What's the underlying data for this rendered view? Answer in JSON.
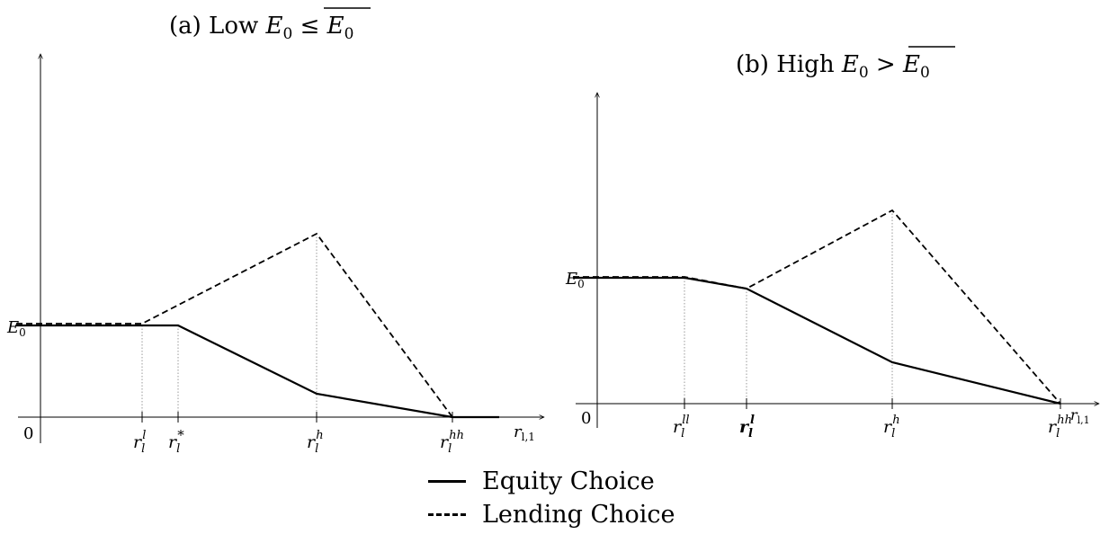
{
  "panel_a": {
    "title_prefix": "(a) Low ",
    "title_math": "E₀ ≤ E₀",
    "title_var": "E",
    "title_sub": "0",
    "title_rel": " ≤ ",
    "origin": "0",
    "y_label": "E₀",
    "ticks": [
      {
        "base": "r",
        "sub": "l",
        "sup": "l"
      },
      {
        "base": "r",
        "sub": "l",
        "sup": "*"
      },
      {
        "base": "r",
        "sub": "l",
        "sup": "h"
      },
      {
        "base": "r",
        "sub": "l",
        "sup": "hh"
      }
    ],
    "x_axis_label": {
      "base": "r",
      "sub": "l,1"
    }
  },
  "panel_b": {
    "title_prefix": "(b) High ",
    "title_var": "E",
    "title_sub": "0",
    "title_rel": " > ",
    "origin": "0",
    "y_label": "E₀",
    "ticks": [
      {
        "base": "r",
        "sub": "l",
        "sup": "ll"
      },
      {
        "base": "r",
        "sub": "l",
        "sup": "l"
      },
      {
        "base": "r",
        "sub": "l",
        "sup": "h"
      },
      {
        "base": "r",
        "sub": "l",
        "sup": "hh"
      }
    ],
    "x_axis_label": {
      "base": "r",
      "sub": "l,1"
    }
  },
  "legend": {
    "equity": "Equity Choice",
    "lending": "Lending Choice"
  },
  "colors": {
    "line": "#000000",
    "guide": "#999999"
  }
}
